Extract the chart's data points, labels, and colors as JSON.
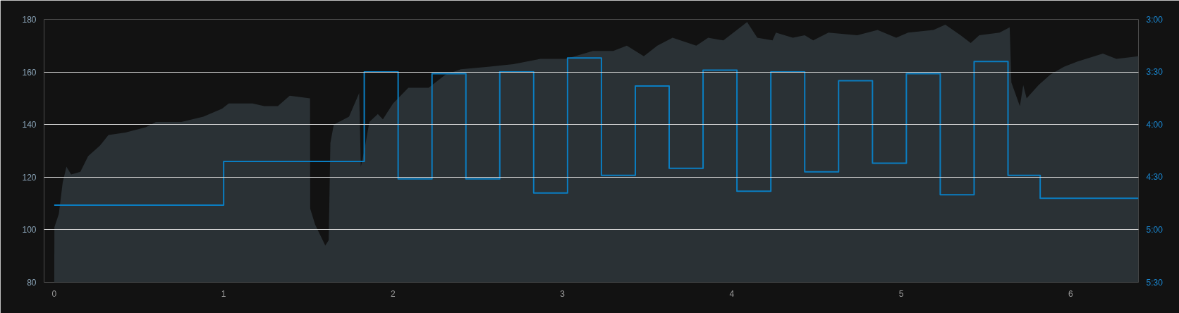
{
  "chart_data": {
    "type": "area",
    "xlim": [
      -0.06,
      6.4
    ],
    "xticks": [
      0,
      1,
      2,
      3,
      4,
      5,
      6
    ],
    "ylim": [
      80,
      180
    ],
    "yticks": [
      80,
      100,
      120,
      140,
      160,
      180
    ],
    "y2lim": [
      330,
      180
    ],
    "y2ticks": [
      {
        "value": 180,
        "label": "3:00"
      },
      {
        "value": 210,
        "label": "3:30"
      },
      {
        "value": 240,
        "label": "4:00"
      },
      {
        "value": 270,
        "label": "4:30"
      },
      {
        "value": 300,
        "label": "5:00"
      },
      {
        "value": 330,
        "label": "5:30"
      }
    ],
    "grid": "y",
    "series": [
      {
        "color": "#2a3135",
        "x": [
          0,
          0.001,
          0.027,
          0.05,
          0.072,
          0.1,
          0.154,
          0.2,
          0.27,
          0.32,
          0.42,
          0.54,
          0.6,
          0.75,
          0.88,
          0.99,
          1.03,
          1.17,
          1.24,
          1.32,
          1.39,
          1.51,
          1.511,
          1.54,
          1.6,
          1.62,
          1.63,
          1.65,
          1.74,
          1.8,
          1.81,
          1.83,
          1.86,
          1.91,
          1.94,
          2.0,
          2.06,
          2.09,
          2.21,
          2.31,
          2.4,
          2.56,
          2.71,
          2.87,
          3.02,
          3.18,
          3.3,
          3.38,
          3.48,
          3.56,
          3.65,
          3.79,
          3.86,
          3.95,
          4.09,
          4.15,
          4.24,
          4.26,
          4.36,
          4.43,
          4.48,
          4.57,
          4.74,
          4.86,
          4.97,
          5.04,
          5.19,
          5.26,
          5.35,
          5.41,
          5.46,
          5.58,
          5.64,
          5.65,
          5.7,
          5.72,
          5.74,
          5.81,
          5.88,
          5.96,
          6.04,
          6.19,
          6.27,
          6.4
        ],
        "values": [
          80,
          101,
          106,
          118,
          124,
          121,
          122,
          128,
          132,
          136,
          137,
          139,
          141,
          141,
          143,
          146,
          148,
          148,
          147,
          147,
          151,
          150,
          108,
          102,
          94,
          96,
          133,
          140,
          143,
          152,
          124,
          130,
          141,
          144,
          142,
          148,
          152,
          154,
          154,
          159,
          161,
          162,
          163,
          165,
          165,
          168,
          168,
          170,
          166,
          170,
          173,
          170,
          173,
          172,
          179,
          173,
          172,
          175,
          173,
          174,
          172,
          175,
          174,
          176,
          173,
          175,
          176,
          178,
          174,
          171,
          174,
          175,
          177,
          156,
          147,
          155,
          150,
          155,
          159,
          162,
          164,
          167,
          165,
          166
        ]
      },
      {
        "type": "step",
        "axis": "y2",
        "color": "#0a7ec2",
        "x": [
          0,
          1,
          1.83,
          2.03,
          2.23,
          2.43,
          2.63,
          2.83,
          3.03,
          3.23,
          3.43,
          3.63,
          3.83,
          4.03,
          4.23,
          4.43,
          4.63,
          4.83,
          5.03,
          5.23,
          5.43,
          5.63,
          5.82,
          6.4
        ],
        "values": [
          286,
          261,
          210,
          271,
          211,
          271,
          210,
          279,
          202,
          269,
          218,
          265,
          209,
          278,
          210,
          267,
          215,
          262,
          211,
          280,
          204,
          269,
          282,
          282
        ]
      }
    ]
  }
}
